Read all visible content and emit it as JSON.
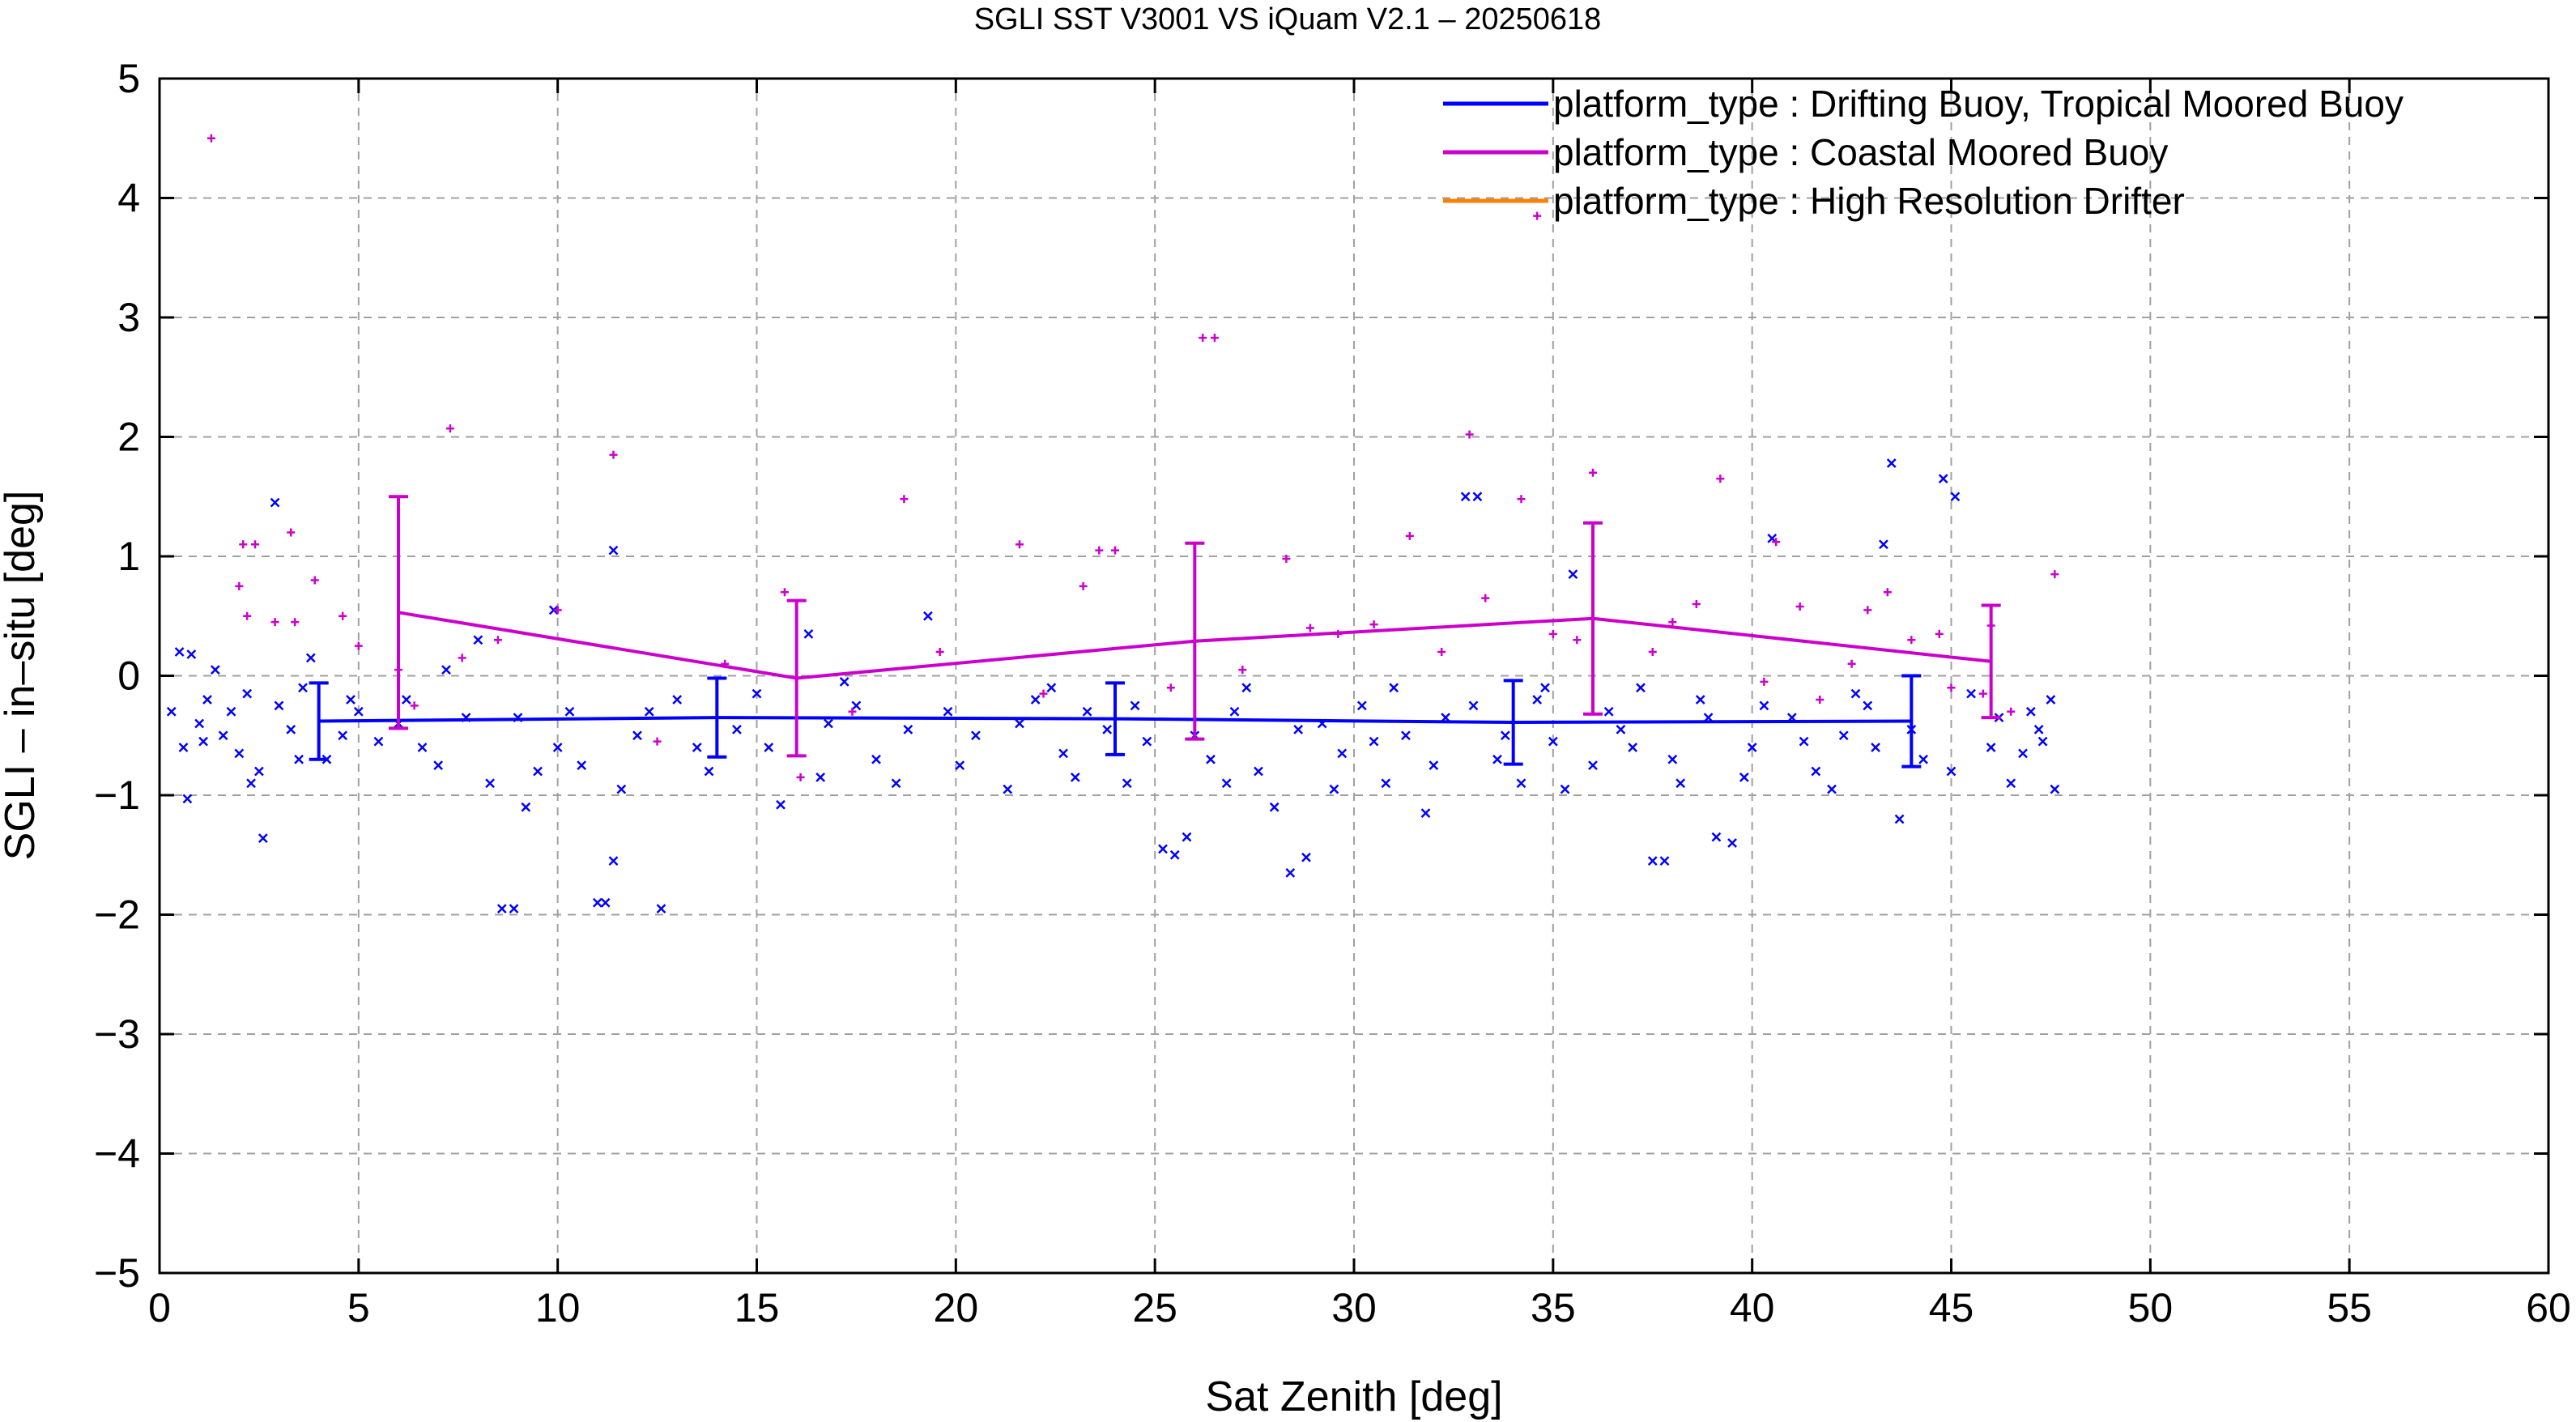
{
  "chart_data": {
    "type": "scatter",
    "title": "SGLI SST V3001 VS iQuam V2.1  – 20250618",
    "xlabel": "Sat Zenith [deg]",
    "ylabel": "SGLI – in–situ [deg]",
    "xlim": [
      0,
      60
    ],
    "ylim": [
      -5,
      5
    ],
    "x_ticks": [
      0,
      5,
      10,
      15,
      20,
      25,
      30,
      35,
      40,
      45,
      50,
      55,
      60
    ],
    "y_ticks": [
      -5,
      -4,
      -3,
      -2,
      -1,
      0,
      1,
      2,
      3,
      4,
      5
    ],
    "x_tick_labels": [
      "0",
      "5",
      "10",
      "15",
      "20",
      "25",
      "30",
      "35",
      "40",
      "45",
      "50",
      "55",
      "60"
    ],
    "y_tick_labels": [
      "−5",
      "−4",
      "−3",
      "−2",
      "−1",
      "0",
      "1",
      "2",
      "3",
      "4",
      "5"
    ],
    "grid": true,
    "legend_position": "top-right",
    "series": [
      {
        "name": "platform_type : Drifting Buoy, Tropical Moored Buoy",
        "color": "#0000ff",
        "marker": "x",
        "mean_line": {
          "x": [
            4,
            14,
            24,
            34,
            44
          ],
          "y": [
            -0.38,
            -0.35,
            -0.36,
            -0.39,
            -0.38
          ],
          "std": [
            0.32,
            0.33,
            0.3,
            0.35,
            0.38
          ]
        },
        "points": [
          [
            0.3,
            -0.3
          ],
          [
            0.5,
            0.2
          ],
          [
            0.6,
            -0.6
          ],
          [
            0.7,
            -1.03
          ],
          [
            0.8,
            0.18
          ],
          [
            1.0,
            -0.4
          ],
          [
            1.2,
            -0.2
          ],
          [
            1.4,
            0.05
          ],
          [
            1.6,
            -0.5
          ],
          [
            1.8,
            -0.3
          ],
          [
            2.0,
            -0.65
          ],
          [
            2.3,
            -0.9
          ],
          [
            2.5,
            -0.8
          ],
          [
            2.6,
            -1.36
          ],
          [
            2.9,
            1.45
          ],
          [
            3.0,
            -0.25
          ],
          [
            3.3,
            -0.45
          ],
          [
            3.6,
            -0.1
          ],
          [
            3.8,
            0.15
          ],
          [
            4.2,
            -0.7
          ],
          [
            4.6,
            -0.5
          ],
          [
            5.0,
            -0.3
          ],
          [
            5.5,
            -0.55
          ],
          [
            6.2,
            -0.2
          ],
          [
            6.6,
            -0.6
          ],
          [
            7.2,
            0.05
          ],
          [
            7.7,
            -0.35
          ],
          [
            8.0,
            0.3
          ],
          [
            8.3,
            -0.9
          ],
          [
            8.6,
            -1.95
          ],
          [
            8.9,
            -1.95
          ],
          [
            9.2,
            -1.1
          ],
          [
            9.5,
            -0.8
          ],
          [
            9.9,
            0.55
          ],
          [
            10.3,
            -0.3
          ],
          [
            10.6,
            -0.75
          ],
          [
            11.0,
            -1.9
          ],
          [
            11.2,
            -1.9
          ],
          [
            11.4,
            -1.55
          ],
          [
            11.4,
            1.05
          ],
          [
            11.6,
            -0.95
          ],
          [
            12.0,
            -0.5
          ],
          [
            12.6,
            -1.95
          ],
          [
            13.0,
            -0.2
          ],
          [
            13.5,
            -0.6
          ],
          [
            14.5,
            -0.45
          ],
          [
            15.0,
            -0.15
          ],
          [
            15.6,
            -1.08
          ],
          [
            16.3,
            0.35
          ],
          [
            16.8,
            -0.4
          ],
          [
            17.5,
            -0.25
          ],
          [
            18.0,
            -0.7
          ],
          [
            18.5,
            -0.9
          ],
          [
            19.3,
            0.5
          ],
          [
            19.8,
            -0.3
          ],
          [
            20.5,
            -0.5
          ],
          [
            21.3,
            -0.95
          ],
          [
            22.0,
            -0.2
          ],
          [
            22.7,
            -0.65
          ],
          [
            23.3,
            -0.3
          ],
          [
            23.8,
            -0.45
          ],
          [
            24.3,
            -0.9
          ],
          [
            24.8,
            -0.55
          ],
          [
            25.2,
            -1.45
          ],
          [
            25.5,
            -1.5
          ],
          [
            25.8,
            -1.35
          ],
          [
            26.4,
            -0.7
          ],
          [
            27.0,
            -0.3
          ],
          [
            27.6,
            -0.8
          ],
          [
            28.0,
            -1.1
          ],
          [
            28.4,
            -1.65
          ],
          [
            28.8,
            -1.52
          ],
          [
            29.2,
            -0.4
          ],
          [
            29.7,
            -0.65
          ],
          [
            30.2,
            -0.25
          ],
          [
            30.8,
            -0.9
          ],
          [
            31.3,
            -0.5
          ],
          [
            31.8,
            -1.15
          ],
          [
            32.3,
            -0.35
          ],
          [
            32.8,
            1.5
          ],
          [
            33.1,
            1.5
          ],
          [
            33.6,
            -0.7
          ],
          [
            34.2,
            -0.9
          ],
          [
            34.6,
            -0.2
          ],
          [
            35.0,
            -0.55
          ],
          [
            35.5,
            0.85
          ],
          [
            36.0,
            -0.75
          ],
          [
            36.4,
            -0.3
          ],
          [
            37.0,
            -0.6
          ],
          [
            37.5,
            -1.55
          ],
          [
            37.8,
            -1.55
          ],
          [
            38.2,
            -0.9
          ],
          [
            38.7,
            -0.2
          ],
          [
            39.1,
            -1.35
          ],
          [
            39.5,
            -1.4
          ],
          [
            40.0,
            -0.6
          ],
          [
            40.5,
            1.15
          ],
          [
            41.0,
            -0.35
          ],
          [
            41.6,
            -0.8
          ],
          [
            42.3,
            -0.5
          ],
          [
            42.9,
            -0.25
          ],
          [
            43.3,
            1.1
          ],
          [
            43.5,
            1.78
          ],
          [
            43.7,
            -1.2
          ],
          [
            44.3,
            -0.7
          ],
          [
            44.8,
            1.65
          ],
          [
            45.1,
            1.5
          ],
          [
            45.5,
            -0.15
          ],
          [
            46.0,
            -0.6
          ],
          [
            46.5,
            -0.9
          ],
          [
            47.0,
            -0.3
          ],
          [
            47.3,
            -0.55
          ],
          [
            47.5,
            -0.2
          ],
          [
            47.6,
            -0.95
          ],
          [
            1.1,
            -0.55
          ],
          [
            2.2,
            -0.15
          ],
          [
            3.5,
            -0.7
          ],
          [
            4.8,
            -0.2
          ],
          [
            6.0,
            -0.4
          ],
          [
            7.0,
            -0.75
          ],
          [
            9.0,
            -0.35
          ],
          [
            10.0,
            -0.6
          ],
          [
            12.3,
            -0.3
          ],
          [
            13.8,
            -0.8
          ],
          [
            15.3,
            -0.6
          ],
          [
            16.6,
            -0.85
          ],
          [
            17.2,
            -0.05
          ],
          [
            18.8,
            -0.45
          ],
          [
            20.1,
            -0.75
          ],
          [
            21.6,
            -0.4
          ],
          [
            22.4,
            -0.1
          ],
          [
            23.0,
            -0.85
          ],
          [
            24.5,
            -0.25
          ],
          [
            26.0,
            -0.5
          ],
          [
            26.8,
            -0.9
          ],
          [
            27.3,
            -0.1
          ],
          [
            28.6,
            -0.45
          ],
          [
            29.5,
            -0.95
          ],
          [
            30.5,
            -0.55
          ],
          [
            31.0,
            -0.1
          ],
          [
            32.0,
            -0.75
          ],
          [
            33.0,
            -0.25
          ],
          [
            33.8,
            -0.5
          ],
          [
            34.8,
            -0.1
          ],
          [
            35.3,
            -0.95
          ],
          [
            36.7,
            -0.45
          ],
          [
            37.2,
            -0.1
          ],
          [
            38.0,
            -0.7
          ],
          [
            38.9,
            -0.35
          ],
          [
            39.8,
            -0.85
          ],
          [
            40.3,
            -0.25
          ],
          [
            41.3,
            -0.55
          ],
          [
            42.0,
            -0.95
          ],
          [
            42.6,
            -0.15
          ],
          [
            43.1,
            -0.6
          ],
          [
            44.0,
            -0.45
          ],
          [
            45.0,
            -0.8
          ],
          [
            46.2,
            -0.35
          ],
          [
            46.8,
            -0.65
          ],
          [
            47.2,
            -0.45
          ]
        ]
      },
      {
        "name": "platform_type : Coastal Moored Buoy",
        "color": "#cc00cc",
        "marker": "+",
        "mean_line": {
          "x": [
            6,
            16,
            26,
            36,
            46
          ],
          "y": [
            0.53,
            -0.02,
            0.29,
            0.48,
            0.12
          ],
          "std": [
            0.97,
            0.65,
            0.82,
            0.8,
            0.47
          ]
        },
        "points": [
          [
            1.3,
            4.5
          ],
          [
            7.3,
            2.07
          ],
          [
            11.4,
            1.85
          ],
          [
            26.2,
            2.83
          ],
          [
            26.5,
            2.83
          ],
          [
            32.9,
            2.02
          ],
          [
            34.6,
            3.85
          ],
          [
            2.1,
            1.1
          ],
          [
            2.4,
            1.1
          ],
          [
            3.3,
            1.2
          ],
          [
            3.9,
            0.8
          ],
          [
            2.2,
            0.5
          ],
          [
            2.9,
            0.45
          ],
          [
            3.4,
            0.45
          ],
          [
            4.6,
            0.5
          ],
          [
            6.0,
            0.05
          ],
          [
            7.6,
            0.15
          ],
          [
            10.0,
            0.55
          ],
          [
            15.7,
            0.7
          ],
          [
            16.1,
            -0.85
          ],
          [
            18.7,
            1.48
          ],
          [
            21.6,
            1.1
          ],
          [
            23.2,
            0.75
          ],
          [
            23.6,
            1.05
          ],
          [
            24.0,
            1.05
          ],
          [
            27.2,
            0.05
          ],
          [
            28.3,
            0.98
          ],
          [
            29.6,
            0.35
          ],
          [
            30.5,
            0.43
          ],
          [
            31.4,
            1.17
          ],
          [
            33.3,
            0.65
          ],
          [
            34.2,
            1.48
          ],
          [
            35.0,
            0.35
          ],
          [
            36.0,
            1.7
          ],
          [
            37.5,
            0.2
          ],
          [
            38.6,
            0.6
          ],
          [
            39.2,
            1.65
          ],
          [
            40.6,
            1.12
          ],
          [
            41.2,
            0.58
          ],
          [
            42.5,
            0.1
          ],
          [
            43.4,
            0.7
          ],
          [
            44.0,
            0.3
          ],
          [
            45.0,
            -0.1
          ],
          [
            46.0,
            0.42
          ],
          [
            46.5,
            -0.3
          ],
          [
            47.6,
            0.85
          ],
          [
            2.0,
            0.75
          ],
          [
            5.0,
            0.25
          ],
          [
            6.4,
            -0.25
          ],
          [
            8.5,
            0.3
          ],
          [
            12.5,
            -0.55
          ],
          [
            14.2,
            0.1
          ],
          [
            17.4,
            -0.3
          ],
          [
            19.6,
            0.2
          ],
          [
            22.2,
            -0.15
          ],
          [
            25.4,
            -0.1
          ],
          [
            28.9,
            0.4
          ],
          [
            32.2,
            0.2
          ],
          [
            35.6,
            0.3
          ],
          [
            38.0,
            0.45
          ],
          [
            40.3,
            -0.05
          ],
          [
            41.7,
            -0.2
          ],
          [
            42.9,
            0.55
          ],
          [
            44.7,
            0.35
          ],
          [
            45.8,
            -0.15
          ]
        ]
      },
      {
        "name": "platform_type : High Resolution Drifter",
        "color": "#ff8000",
        "marker": "none",
        "points": []
      }
    ]
  }
}
